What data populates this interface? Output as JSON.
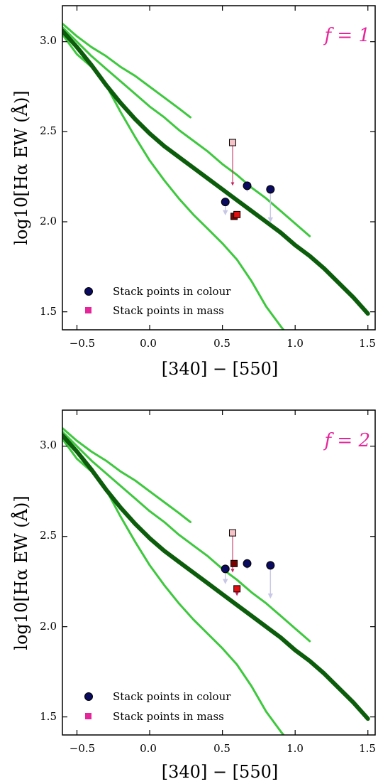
{
  "chart_data": [
    {
      "type": "line",
      "annotation": "f = 1",
      "xlabel": "[340] − [550]",
      "ylabel": "log10[Hα EW (Å)]",
      "xlim": [
        -0.6,
        1.55
      ],
      "ylim": [
        1.4,
        3.2
      ],
      "xticks": [
        -0.5,
        0.0,
        0.5,
        1.0,
        1.5
      ],
      "xtick_labels": [
        "−0.5",
        "0.0",
        "0.5",
        "1.0",
        "1.5"
      ],
      "yticks": [
        1.5,
        2.0,
        2.5,
        3.0
      ],
      "ytick_labels": [
        "1.5",
        "2.0",
        "2.5",
        "3.0"
      ],
      "legend": {
        "placement": "lower-left",
        "entries": [
          {
            "label": "Stack points in colour",
            "marker": "circle",
            "color": "#0a0a5e"
          },
          {
            "label": "Stack points in mass",
            "marker": "square",
            "color": "#e6259a"
          }
        ]
      },
      "lines": [
        {
          "color": "#0b5c0b",
          "width": 6,
          "x": [
            -0.6,
            -0.5,
            -0.4,
            -0.3,
            -0.2,
            -0.1,
            0.0,
            0.1,
            0.2,
            0.3,
            0.4,
            0.5,
            0.6,
            0.7,
            0.8,
            0.9,
            1.0,
            1.1,
            1.2,
            1.3,
            1.4,
            1.5
          ],
          "y": [
            3.06,
            2.97,
            2.87,
            2.76,
            2.66,
            2.57,
            2.49,
            2.42,
            2.36,
            2.3,
            2.24,
            2.18,
            2.12,
            2.06,
            2.0,
            1.94,
            1.87,
            1.81,
            1.74,
            1.66,
            1.58,
            1.49
          ]
        },
        {
          "color": "#3ec83e",
          "width": 3,
          "x": [
            -0.6,
            -0.5,
            -0.4,
            -0.3,
            -0.2,
            -0.1,
            0.0,
            0.1,
            0.2,
            0.28
          ],
          "y": [
            3.1,
            3.03,
            2.97,
            2.92,
            2.86,
            2.81,
            2.75,
            2.69,
            2.63,
            2.58
          ]
        },
        {
          "color": "#3ec83e",
          "width": 3,
          "x": [
            -0.6,
            -0.5,
            -0.4,
            -0.3,
            -0.2,
            -0.1,
            0.0,
            0.1,
            0.2,
            0.3,
            0.4,
            0.5,
            0.6,
            0.7,
            0.8,
            0.9,
            1.0,
            1.1
          ],
          "y": [
            3.08,
            3.0,
            2.92,
            2.85,
            2.78,
            2.71,
            2.64,
            2.58,
            2.51,
            2.45,
            2.39,
            2.32,
            2.26,
            2.19,
            2.13,
            2.06,
            1.99,
            1.92
          ]
        },
        {
          "color": "#3ec83e",
          "width": 3,
          "x": [
            -0.6,
            -0.5,
            -0.4,
            -0.3,
            -0.2,
            -0.1,
            0.0,
            0.1,
            0.2,
            0.3,
            0.4,
            0.5,
            0.6,
            0.7,
            0.8,
            0.9,
            0.95
          ],
          "y": [
            3.04,
            2.93,
            2.86,
            2.76,
            2.61,
            2.47,
            2.34,
            2.23,
            2.13,
            2.04,
            1.96,
            1.88,
            1.79,
            1.67,
            1.53,
            1.42,
            1.37
          ]
        }
      ],
      "colour_points": [
        {
          "x": 0.52,
          "y": 2.11,
          "y_lower": 2.05
        },
        {
          "x": 0.67,
          "y": 2.2,
          "y_lower": 2.18
        },
        {
          "x": 0.83,
          "y": 2.18,
          "y_lower": 2.01
        }
      ],
      "mass_points": [
        {
          "x": 0.57,
          "y": 2.44,
          "y_lower": 2.21,
          "color": "#f6c4c8"
        },
        {
          "x": 0.58,
          "y": 2.03,
          "y_lower": 2.02,
          "color": "#7a0000"
        },
        {
          "x": 0.6,
          "y": 2.04,
          "y_lower": 2.03,
          "color": "#e01010"
        }
      ]
    },
    {
      "type": "line",
      "annotation": "f = 2",
      "xlabel": "[340] − [550]",
      "ylabel": "log10[Hα EW (Å)]",
      "xlim": [
        -0.6,
        1.55
      ],
      "ylim": [
        1.4,
        3.2
      ],
      "xticks": [
        -0.5,
        0.0,
        0.5,
        1.0,
        1.5
      ],
      "xtick_labels": [
        "−0.5",
        "0.0",
        "0.5",
        "1.0",
        "1.5"
      ],
      "yticks": [
        1.5,
        2.0,
        2.5,
        3.0
      ],
      "ytick_labels": [
        "1.5",
        "2.0",
        "2.5",
        "3.0"
      ],
      "legend": {
        "placement": "lower-left",
        "entries": [
          {
            "label": "Stack points in colour",
            "marker": "circle",
            "color": "#0a0a5e"
          },
          {
            "label": "Stack points in mass",
            "marker": "square",
            "color": "#e6259a"
          }
        ]
      },
      "lines": [
        {
          "color": "#0b5c0b",
          "width": 6,
          "x": [
            -0.6,
            -0.5,
            -0.4,
            -0.3,
            -0.2,
            -0.1,
            0.0,
            0.1,
            0.2,
            0.3,
            0.4,
            0.5,
            0.6,
            0.7,
            0.8,
            0.9,
            1.0,
            1.1,
            1.2,
            1.3,
            1.4,
            1.5
          ],
          "y": [
            3.06,
            2.97,
            2.87,
            2.76,
            2.66,
            2.57,
            2.49,
            2.42,
            2.36,
            2.3,
            2.24,
            2.18,
            2.12,
            2.06,
            2.0,
            1.94,
            1.87,
            1.81,
            1.74,
            1.66,
            1.58,
            1.49
          ]
        },
        {
          "color": "#3ec83e",
          "width": 3,
          "x": [
            -0.6,
            -0.5,
            -0.4,
            -0.3,
            -0.2,
            -0.1,
            0.0,
            0.1,
            0.2,
            0.28
          ],
          "y": [
            3.1,
            3.03,
            2.97,
            2.92,
            2.86,
            2.81,
            2.75,
            2.69,
            2.63,
            2.58
          ]
        },
        {
          "color": "#3ec83e",
          "width": 3,
          "x": [
            -0.6,
            -0.5,
            -0.4,
            -0.3,
            -0.2,
            -0.1,
            0.0,
            0.1,
            0.2,
            0.3,
            0.4,
            0.5,
            0.6,
            0.7,
            0.8,
            0.9,
            1.0,
            1.1
          ],
          "y": [
            3.08,
            3.0,
            2.92,
            2.85,
            2.78,
            2.71,
            2.64,
            2.58,
            2.51,
            2.45,
            2.39,
            2.32,
            2.26,
            2.19,
            2.13,
            2.06,
            1.99,
            1.92
          ]
        },
        {
          "color": "#3ec83e",
          "width": 3,
          "x": [
            -0.6,
            -0.5,
            -0.4,
            -0.3,
            -0.2,
            -0.1,
            0.0,
            0.1,
            0.2,
            0.3,
            0.4,
            0.5,
            0.6,
            0.7,
            0.8,
            0.9,
            0.95
          ],
          "y": [
            3.04,
            2.93,
            2.86,
            2.76,
            2.61,
            2.47,
            2.34,
            2.23,
            2.13,
            2.04,
            1.96,
            1.88,
            1.79,
            1.67,
            1.53,
            1.42,
            1.37
          ]
        }
      ],
      "colour_points": [
        {
          "x": 0.52,
          "y": 2.32,
          "y_lower": 2.25
        },
        {
          "x": 0.67,
          "y": 2.35,
          "y_lower": 2.33
        },
        {
          "x": 0.83,
          "y": 2.34,
          "y_lower": 2.17
        }
      ],
      "mass_points": [
        {
          "x": 0.57,
          "y": 2.52,
          "y_lower": 2.31,
          "color": "#f6c4c8"
        },
        {
          "x": 0.58,
          "y": 2.35,
          "y_lower": 2.34,
          "color": "#7a0000"
        },
        {
          "x": 0.6,
          "y": 2.21,
          "y_lower": 2.18,
          "color": "#e01010"
        }
      ]
    }
  ]
}
